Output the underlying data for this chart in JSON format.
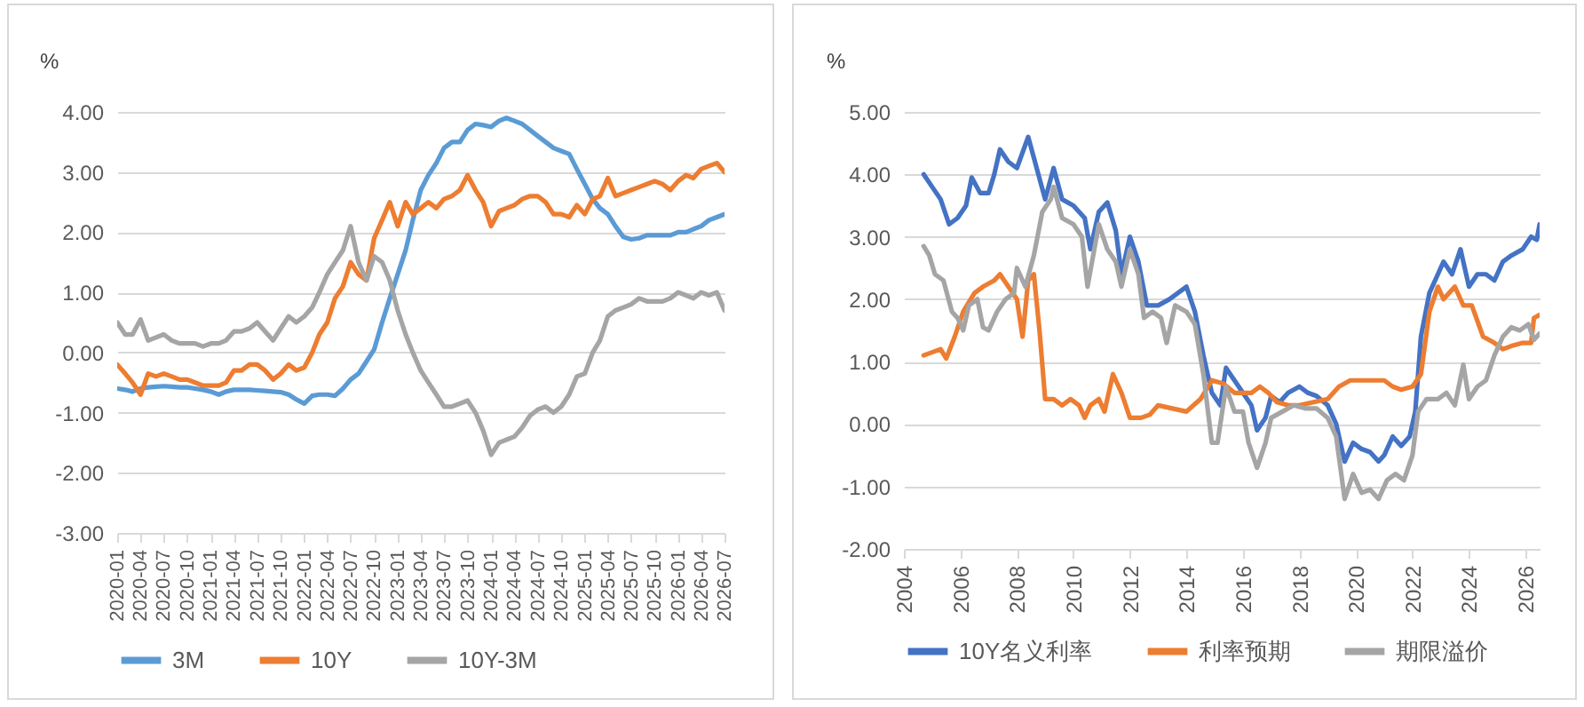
{
  "chart_data": [
    {
      "type": "line",
      "ylabel": "%",
      "x": [
        "2020-01",
        "2020-02",
        "2020-03",
        "2020-04",
        "2020-05",
        "2020-06",
        "2020-07",
        "2020-08",
        "2020-09",
        "2020-10",
        "2020-11",
        "2020-12",
        "2021-01",
        "2021-02",
        "2021-03",
        "2021-04",
        "2021-05",
        "2021-06",
        "2021-07",
        "2021-08",
        "2021-09",
        "2021-10",
        "2021-11",
        "2021-12",
        "2022-01",
        "2022-02",
        "2022-03",
        "2022-04",
        "2022-05",
        "2022-06",
        "2022-07",
        "2022-08",
        "2022-09",
        "2022-10",
        "2022-11",
        "2022-12",
        "2023-01",
        "2023-02",
        "2023-03",
        "2023-04",
        "2023-05",
        "2023-06",
        "2023-07",
        "2023-08",
        "2023-09",
        "2023-10",
        "2023-11",
        "2023-12",
        "2024-01",
        "2024-02",
        "2024-03",
        "2024-04",
        "2024-05",
        "2024-06",
        "2024-07",
        "2024-08",
        "2024-09",
        "2024-10",
        "2024-11",
        "2024-12",
        "2025-01",
        "2025-02",
        "2025-03",
        "2025-04",
        "2025-05",
        "2025-06",
        "2025-07",
        "2025-08",
        "2025-09",
        "2025-10",
        "2025-11",
        "2025-12",
        "2026-01",
        "2026-02",
        "2026-03",
        "2026-04",
        "2026-05",
        "2026-06",
        "2026-07"
      ],
      "series": [
        {
          "name": "3M",
          "color": "#5b9bd5",
          "values": [
            -0.6,
            -0.62,
            -0.65,
            -0.6,
            -0.58,
            -0.57,
            -0.56,
            -0.57,
            -0.58,
            -0.58,
            -0.6,
            -0.62,
            -0.65,
            -0.7,
            -0.65,
            -0.62,
            -0.62,
            -0.62,
            -0.63,
            -0.64,
            -0.65,
            -0.66,
            -0.7,
            -0.78,
            -0.85,
            -0.72,
            -0.7,
            -0.7,
            -0.72,
            -0.6,
            -0.45,
            -0.35,
            -0.15,
            0.05,
            0.5,
            0.9,
            1.3,
            1.7,
            2.2,
            2.7,
            2.95,
            3.15,
            3.4,
            3.5,
            3.5,
            3.7,
            3.8,
            3.78,
            3.75,
            3.85,
            3.9,
            3.85,
            3.8,
            3.7,
            3.6,
            3.5,
            3.4,
            3.35,
            3.3,
            3.05,
            2.8,
            2.55,
            2.4,
            2.3,
            2.1,
            1.92,
            1.88,
            1.9,
            1.95,
            1.95,
            1.95,
            1.95,
            2.0,
            2.0,
            2.05,
            2.1,
            2.2,
            2.25,
            2.3
          ]
        },
        {
          "name": "10Y",
          "color": "#ed7d31",
          "values": [
            -0.2,
            -0.35,
            -0.5,
            -0.7,
            -0.35,
            -0.4,
            -0.35,
            -0.4,
            -0.45,
            -0.45,
            -0.5,
            -0.55,
            -0.55,
            -0.55,
            -0.5,
            -0.3,
            -0.3,
            -0.2,
            -0.2,
            -0.3,
            -0.45,
            -0.35,
            -0.2,
            -0.3,
            -0.25,
            0.0,
            0.3,
            0.5,
            0.9,
            1.1,
            1.5,
            1.3,
            1.2,
            1.9,
            2.2,
            2.5,
            2.1,
            2.5,
            2.3,
            2.4,
            2.5,
            2.4,
            2.55,
            2.6,
            2.7,
            2.95,
            2.7,
            2.5,
            2.1,
            2.35,
            2.4,
            2.45,
            2.55,
            2.6,
            2.6,
            2.5,
            2.3,
            2.3,
            2.25,
            2.45,
            2.3,
            2.55,
            2.6,
            2.9,
            2.6,
            2.65,
            2.7,
            2.75,
            2.8,
            2.85,
            2.8,
            2.7,
            2.85,
            2.95,
            2.9,
            3.05,
            3.1,
            3.15,
            3.0
          ]
        },
        {
          "name": "10Y-3M",
          "color": "#a5a5a5",
          "values": [
            0.5,
            0.3,
            0.3,
            0.55,
            0.2,
            0.25,
            0.3,
            0.2,
            0.15,
            0.15,
            0.15,
            0.1,
            0.15,
            0.15,
            0.2,
            0.35,
            0.35,
            0.4,
            0.5,
            0.35,
            0.2,
            0.4,
            0.6,
            0.5,
            0.6,
            0.75,
            1.0,
            1.3,
            1.5,
            1.7,
            2.1,
            1.5,
            1.2,
            1.6,
            1.5,
            1.2,
            0.7,
            0.3,
            0.0,
            -0.3,
            -0.5,
            -0.7,
            -0.9,
            -0.9,
            -0.85,
            -0.8,
            -1.0,
            -1.3,
            -1.7,
            -1.5,
            -1.45,
            -1.4,
            -1.25,
            -1.05,
            -0.95,
            -0.9,
            -1.0,
            -0.9,
            -0.7,
            -0.4,
            -0.35,
            0.0,
            0.2,
            0.6,
            0.7,
            0.75,
            0.8,
            0.9,
            0.85,
            0.85,
            0.85,
            0.9,
            1.0,
            0.95,
            0.9,
            1.0,
            0.95,
            1.0,
            0.7
          ]
        }
      ],
      "xlim": [
        "2020-01",
        "2026-07"
      ],
      "xticks": [
        "2020-01",
        "2020-04",
        "2020-07",
        "2020-10",
        "2021-01",
        "2021-04",
        "2021-07",
        "2021-10",
        "2022-01",
        "2022-04",
        "2022-07",
        "2022-10",
        "2023-01",
        "2023-04",
        "2023-07",
        "2023-10",
        "2024-01",
        "2024-04",
        "2024-07",
        "2024-10",
        "2025-01",
        "2025-04",
        "2025-07",
        "2025-10",
        "2026-01",
        "2026-04",
        "2026-07"
      ],
      "ylim": [
        -3,
        4
      ],
      "yticks": [
        {
          "value": -3,
          "label": "-3.00"
        },
        {
          "value": -2,
          "label": "-2.00"
        },
        {
          "value": -1,
          "label": "-1.00"
        },
        {
          "value": 0,
          "label": "0.00"
        },
        {
          "value": 1,
          "label": "1.00"
        },
        {
          "value": 2,
          "label": "2.00"
        },
        {
          "value": 3,
          "label": "3.00"
        },
        {
          "value": 4,
          "label": "4.00"
        }
      ],
      "grid": "y",
      "legend": "bottom"
    },
    {
      "type": "line",
      "ylabel": "%",
      "series": [
        {
          "name": "10Y名义利率",
          "color": "#4472c4",
          "x": [
            2004.7,
            2005.0,
            2005.3,
            2005.6,
            2005.9,
            2006.2,
            2006.4,
            2006.7,
            2007.0,
            2007.2,
            2007.4,
            2007.7,
            2008.0,
            2008.4,
            2008.7,
            2009.0,
            2009.3,
            2009.6,
            2010.0,
            2010.4,
            2010.6,
            2010.9,
            2011.2,
            2011.5,
            2011.7,
            2012.0,
            2012.3,
            2012.6,
            2013.0,
            2013.4,
            2013.7,
            2014.0,
            2014.3,
            2014.6,
            2014.9,
            2015.2,
            2015.4,
            2015.7,
            2016.0,
            2016.3,
            2016.5,
            2016.8,
            2017.0,
            2017.3,
            2017.6,
            2018.0,
            2018.3,
            2018.6,
            2019.0,
            2019.3,
            2019.6,
            2019.9,
            2020.2,
            2020.5,
            2020.8,
            2021.0,
            2021.3,
            2021.6,
            2021.9,
            2022.1,
            2022.3,
            2022.6,
            2022.9,
            2023.1,
            2023.4,
            2023.7,
            2024.0,
            2024.3,
            2024.6,
            2024.9,
            2025.2,
            2025.5,
            2025.9,
            2026.2,
            2026.4,
            2026.5
          ],
          "values": [
            4.0,
            3.8,
            3.6,
            3.2,
            3.3,
            3.5,
            3.95,
            3.7,
            3.7,
            4.0,
            4.4,
            4.2,
            4.1,
            4.6,
            4.1,
            3.6,
            4.1,
            3.6,
            3.5,
            3.3,
            2.8,
            3.4,
            3.55,
            3.1,
            2.4,
            3.0,
            2.6,
            1.9,
            1.9,
            2.0,
            2.1,
            2.2,
            1.8,
            1.1,
            0.5,
            0.3,
            0.9,
            0.7,
            0.5,
            0.3,
            -0.1,
            0.1,
            0.45,
            0.35,
            0.5,
            0.6,
            0.5,
            0.45,
            0.3,
            0.0,
            -0.6,
            -0.3,
            -0.4,
            -0.45,
            -0.6,
            -0.5,
            -0.2,
            -0.35,
            -0.2,
            0.2,
            1.4,
            2.1,
            2.4,
            2.6,
            2.4,
            2.8,
            2.2,
            2.4,
            2.4,
            2.3,
            2.6,
            2.7,
            2.8,
            3.0,
            2.95,
            3.2
          ]
        },
        {
          "name": "利率预期",
          "color": "#ed7d31",
          "x": [
            2004.7,
            2005.0,
            2005.3,
            2005.5,
            2005.8,
            2006.1,
            2006.5,
            2006.8,
            2007.2,
            2007.4,
            2007.7,
            2008.0,
            2008.2,
            2008.4,
            2008.6,
            2008.8,
            2009.0,
            2009.3,
            2009.6,
            2009.9,
            2010.2,
            2010.4,
            2010.6,
            2010.9,
            2011.1,
            2011.4,
            2011.7,
            2012.0,
            2012.4,
            2012.7,
            2013.0,
            2013.5,
            2014.0,
            2014.5,
            2014.9,
            2015.3,
            2015.7,
            2016.0,
            2016.3,
            2016.6,
            2016.9,
            2017.2,
            2017.6,
            2018.0,
            2018.5,
            2019.0,
            2019.4,
            2019.8,
            2020.2,
            2020.6,
            2021.0,
            2021.3,
            2021.6,
            2022.0,
            2022.3,
            2022.6,
            2022.9,
            2023.1,
            2023.5,
            2023.8,
            2024.1,
            2024.5,
            2024.9,
            2025.2,
            2025.5,
            2025.9,
            2026.2,
            2026.3,
            2026.5
          ],
          "values": [
            1.1,
            1.15,
            1.2,
            1.05,
            1.4,
            1.8,
            2.1,
            2.2,
            2.3,
            2.4,
            2.2,
            2.0,
            1.4,
            2.3,
            2.4,
            1.5,
            0.4,
            0.4,
            0.3,
            0.4,
            0.3,
            0.1,
            0.3,
            0.4,
            0.2,
            0.8,
            0.5,
            0.1,
            0.1,
            0.15,
            0.3,
            0.25,
            0.2,
            0.4,
            0.7,
            0.65,
            0.5,
            0.5,
            0.5,
            0.6,
            0.5,
            0.35,
            0.3,
            0.3,
            0.35,
            0.4,
            0.6,
            0.7,
            0.7,
            0.7,
            0.7,
            0.6,
            0.55,
            0.6,
            0.8,
            1.8,
            2.2,
            2.0,
            2.2,
            1.9,
            1.9,
            1.4,
            1.3,
            1.2,
            1.25,
            1.3,
            1.3,
            1.7,
            1.75
          ]
        },
        {
          "name": "期限溢价",
          "color": "#a5a5a5",
          "x": [
            2004.7,
            2004.9,
            2005.1,
            2005.4,
            2005.7,
            2005.9,
            2006.1,
            2006.3,
            2006.6,
            2006.8,
            2007.0,
            2007.3,
            2007.6,
            2007.9,
            2008.0,
            2008.3,
            2008.6,
            2008.9,
            2009.2,
            2009.3,
            2009.6,
            2010.0,
            2010.3,
            2010.5,
            2010.9,
            2011.2,
            2011.5,
            2011.7,
            2012.0,
            2012.3,
            2012.5,
            2012.8,
            2013.1,
            2013.3,
            2013.6,
            2014.0,
            2014.3,
            2014.6,
            2014.9,
            2015.1,
            2015.4,
            2015.7,
            2016.0,
            2016.2,
            2016.5,
            2016.8,
            2017.0,
            2017.4,
            2017.8,
            2018.2,
            2018.6,
            2019.0,
            2019.3,
            2019.6,
            2019.9,
            2020.2,
            2020.5,
            2020.8,
            2021.1,
            2021.4,
            2021.7,
            2022.0,
            2022.2,
            2022.5,
            2022.9,
            2023.2,
            2023.5,
            2023.8,
            2024.0,
            2024.3,
            2024.6,
            2024.9,
            2025.2,
            2025.5,
            2025.8,
            2026.1,
            2026.3,
            2026.5
          ],
          "values": [
            2.85,
            2.7,
            2.4,
            2.3,
            1.8,
            1.7,
            1.5,
            1.9,
            2.0,
            1.55,
            1.5,
            1.8,
            2.0,
            2.1,
            2.5,
            2.2,
            2.7,
            3.4,
            3.6,
            3.8,
            3.3,
            3.2,
            3.0,
            2.2,
            3.2,
            2.8,
            2.6,
            2.2,
            2.8,
            2.4,
            1.7,
            1.8,
            1.7,
            1.3,
            1.9,
            1.8,
            1.6,
            0.8,
            -0.3,
            -0.3,
            0.6,
            0.2,
            0.2,
            -0.3,
            -0.7,
            -0.3,
            0.1,
            0.2,
            0.3,
            0.25,
            0.25,
            0.1,
            -0.2,
            -1.2,
            -0.8,
            -1.1,
            -1.05,
            -1.2,
            -0.9,
            -0.8,
            -0.9,
            -0.5,
            0.2,
            0.4,
            0.4,
            0.5,
            0.3,
            0.95,
            0.4,
            0.6,
            0.7,
            1.1,
            1.4,
            1.55,
            1.5,
            1.6,
            1.35,
            1.45
          ]
        }
      ],
      "xlim": [
        2004,
        2026.5
      ],
      "xticks": [
        2004,
        2006,
        2008,
        2010,
        2012,
        2014,
        2016,
        2018,
        2020,
        2022,
        2024,
        2026
      ],
      "ylim": [
        -2,
        5
      ],
      "yticks": [
        {
          "value": -2,
          "label": "-2.00"
        },
        {
          "value": -1,
          "label": "-1.00"
        },
        {
          "value": 0,
          "label": "0.00"
        },
        {
          "value": 1,
          "label": "1.00"
        },
        {
          "value": 2,
          "label": "2.00"
        },
        {
          "value": 3,
          "label": "3.00"
        },
        {
          "value": 4,
          "label": "4.00"
        },
        {
          "value": 5,
          "label": "5.00"
        }
      ],
      "grid": "y",
      "legend": "bottom"
    }
  ]
}
